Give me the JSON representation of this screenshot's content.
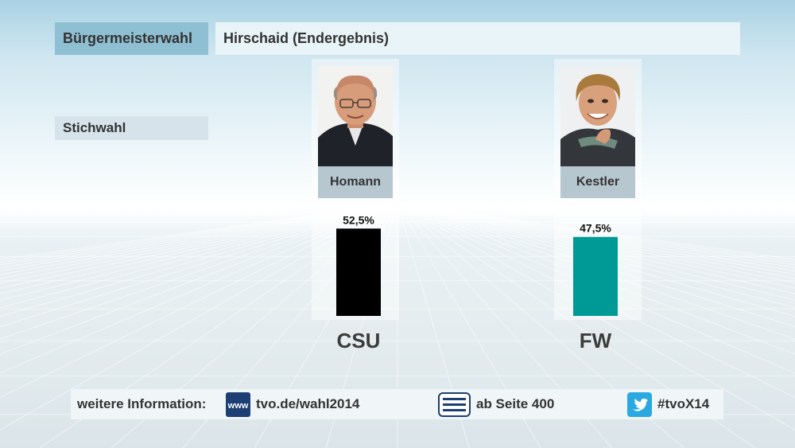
{
  "header": {
    "category": "Bürgermeisterwahl",
    "title": "Hirschaid (Endergebnis)"
  },
  "round_label": "Stichwahl",
  "candidates": [
    {
      "name": "Homann",
      "party": "CSU",
      "value_label": "52,5%"
    },
    {
      "name": "Kestler",
      "party": "FW",
      "value_label": "47,5%"
    }
  ],
  "chart_data": {
    "type": "bar",
    "categories": [
      "CSU",
      "FW"
    ],
    "values": [
      52.5,
      47.5
    ],
    "value_labels": [
      "52,5%",
      "47,5%"
    ],
    "colors": [
      "#000000",
      "#009a96"
    ],
    "ylim": [
      0,
      55
    ],
    "grid": false,
    "title": "",
    "xlabel": "",
    "ylabel": ""
  },
  "footer": {
    "info_label": "weitere Information:",
    "www_icon_text": "www",
    "website": "tvo.de/wahl2014",
    "teletext": "ab Seite 400",
    "hashtag": "#tvoX14"
  },
  "icons": [
    "www-icon",
    "teletext-icon",
    "twitter-icon"
  ]
}
